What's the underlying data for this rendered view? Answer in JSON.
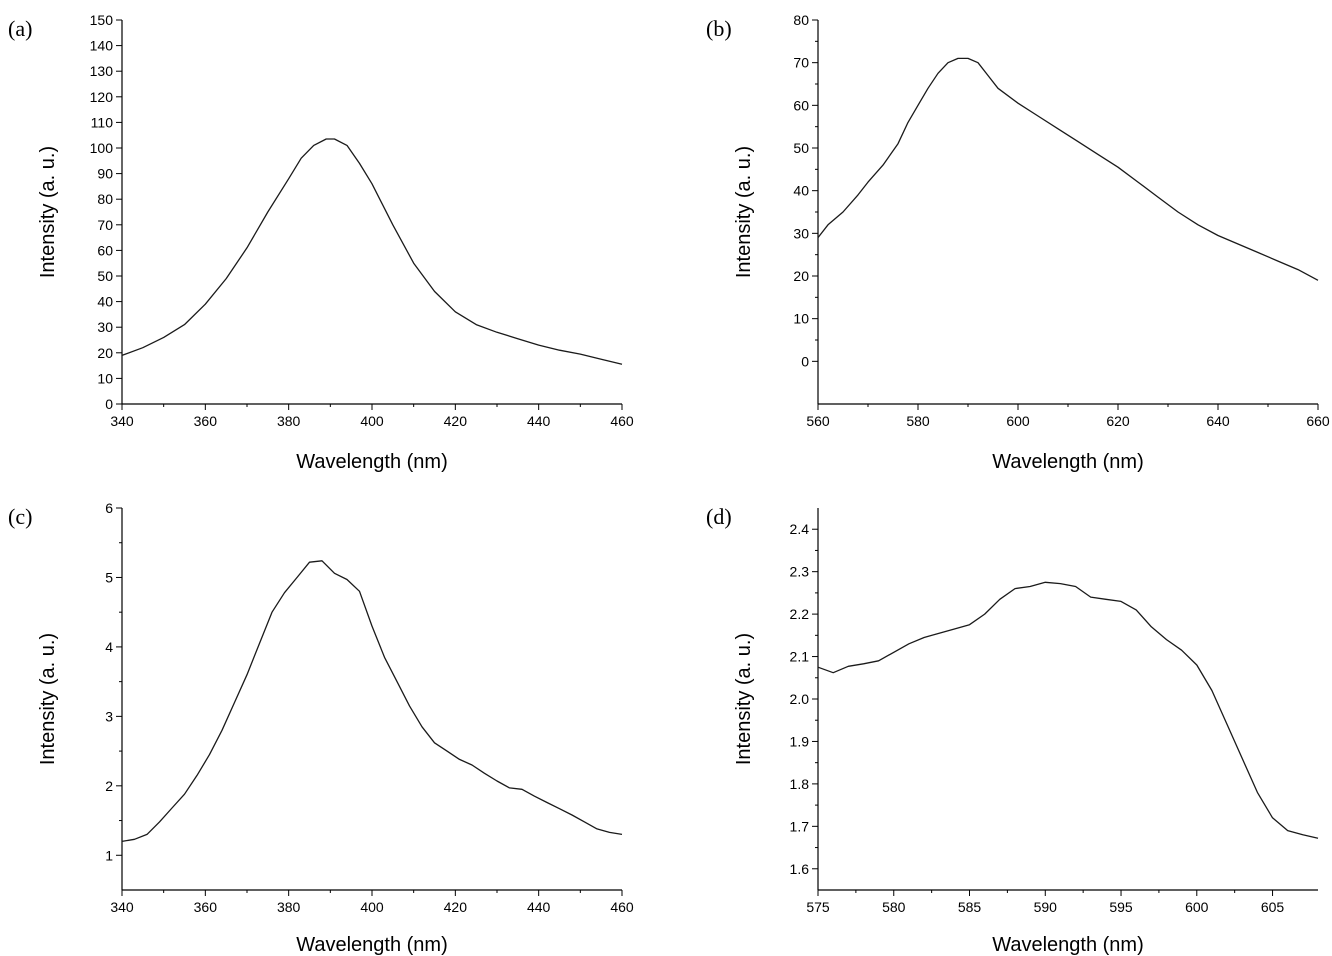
{
  "chart_data": [
    {
      "panel": "(a)",
      "type": "line",
      "xlabel": "Wavelength (nm)",
      "ylabel": "Intensity (a. u.)",
      "xlim": [
        340,
        460
      ],
      "ylim": [
        0,
        150
      ],
      "xticks": [
        340,
        360,
        380,
        400,
        420,
        440,
        460
      ],
      "yticks": [
        0,
        10,
        20,
        30,
        40,
        50,
        60,
        70,
        80,
        90,
        100,
        110,
        120,
        130,
        140,
        150
      ],
      "grid": false,
      "series": [
        {
          "x": [
            340,
            345,
            350,
            355,
            360,
            365,
            370,
            375,
            380,
            383,
            386,
            389,
            391,
            394,
            397,
            400,
            405,
            410,
            415,
            420,
            425,
            430,
            435,
            440,
            445,
            450,
            455,
            460
          ],
          "y": [
            19,
            22,
            26,
            31,
            39,
            49,
            61,
            75,
            88,
            96,
            101,
            103.5,
            103.5,
            101,
            94,
            86,
            70,
            55,
            44,
            36,
            31,
            28,
            25.5,
            23,
            21,
            19.5,
            17.5,
            15.5
          ]
        }
      ]
    },
    {
      "panel": "(b)",
      "type": "line",
      "xlabel": "Wavelength (nm)",
      "ylabel": "Intensity (a. u.)",
      "xlim": [
        560,
        660
      ],
      "ylim": [
        -10,
        80
      ],
      "xticks": [
        560,
        580,
        600,
        620,
        640,
        660
      ],
      "yticks": [
        0,
        10,
        20,
        30,
        40,
        50,
        60,
        70,
        80
      ],
      "grid": false,
      "series": [
        {
          "x": [
            560,
            562,
            565,
            568,
            570,
            573,
            576,
            578,
            580,
            582,
            584,
            586,
            588,
            590,
            592,
            594,
            596,
            600,
            604,
            608,
            612,
            616,
            620,
            624,
            628,
            632,
            636,
            640,
            644,
            648,
            652,
            656,
            660
          ],
          "y": [
            29,
            32,
            35,
            39,
            42,
            46,
            51,
            56,
            60,
            64,
            67.5,
            70,
            71,
            71,
            70,
            67,
            64,
            60.5,
            57.5,
            54.5,
            51.5,
            48.5,
            45.5,
            42,
            38.5,
            35,
            32,
            29.5,
            27.5,
            25.5,
            23.5,
            21.5,
            19
          ]
        }
      ]
    },
    {
      "panel": "(c)",
      "type": "line",
      "xlabel": "Wavelength (nm)",
      "ylabel": "Intensity (a. u.)",
      "xlim": [
        340,
        460
      ],
      "ylim": [
        0.5,
        6
      ],
      "xticks": [
        340,
        360,
        380,
        400,
        420,
        440,
        460
      ],
      "yticks": [
        1,
        2,
        3,
        4,
        5,
        6
      ],
      "grid": false,
      "series": [
        {
          "x": [
            340,
            343,
            346,
            349,
            352,
            355,
            358,
            361,
            364,
            367,
            370,
            373,
            376,
            379,
            382,
            385,
            388,
            391,
            394,
            397,
            400,
            403,
            406,
            409,
            412,
            415,
            418,
            421,
            424,
            427,
            430,
            433,
            436,
            439,
            442,
            445,
            448,
            451,
            454,
            457,
            460
          ],
          "y": [
            1.2,
            1.23,
            1.3,
            1.48,
            1.68,
            1.88,
            2.15,
            2.45,
            2.8,
            3.2,
            3.6,
            4.05,
            4.5,
            4.78,
            5.0,
            5.22,
            5.24,
            5.06,
            4.97,
            4.8,
            4.3,
            3.85,
            3.5,
            3.15,
            2.85,
            2.62,
            2.5,
            2.38,
            2.3,
            2.18,
            2.07,
            1.97,
            1.95,
            1.85,
            1.76,
            1.67,
            1.58,
            1.48,
            1.38,
            1.33,
            1.3
          ]
        }
      ]
    },
    {
      "panel": "(d)",
      "type": "line",
      "xlabel": "Wavelength (nm)",
      "ylabel": "Intensity (a. u.)",
      "xlim": [
        575,
        608
      ],
      "ylim": [
        1.55,
        2.45
      ],
      "xticks": [
        575,
        580,
        585,
        590,
        595,
        600,
        605
      ],
      "yticks": [
        1.6,
        1.7,
        1.8,
        1.9,
        2.0,
        2.1,
        2.2,
        2.3,
        2.4
      ],
      "ytick_labels": [
        "1.6",
        "1.7",
        "1.8",
        "1.9",
        "2.0",
        "2.1",
        "2.2",
        "2.3",
        "2.4"
      ],
      "grid": false,
      "series": [
        {
          "x": [
            575,
            576,
            577,
            578,
            579,
            580,
            581,
            582,
            583,
            584,
            585,
            586,
            587,
            588,
            589,
            590,
            591,
            592,
            593,
            594,
            595,
            596,
            597,
            598,
            599,
            600,
            601,
            602,
            603,
            604,
            605,
            606,
            607,
            608
          ],
          "y": [
            2.075,
            2.062,
            2.077,
            2.083,
            2.09,
            2.11,
            2.13,
            2.145,
            2.155,
            2.165,
            2.175,
            2.2,
            2.235,
            2.26,
            2.265,
            2.275,
            2.272,
            2.265,
            2.24,
            2.235,
            2.23,
            2.21,
            2.17,
            2.14,
            2.115,
            2.08,
            2.02,
            1.94,
            1.86,
            1.78,
            1.72,
            1.69,
            1.68,
            1.672
          ]
        }
      ]
    }
  ]
}
